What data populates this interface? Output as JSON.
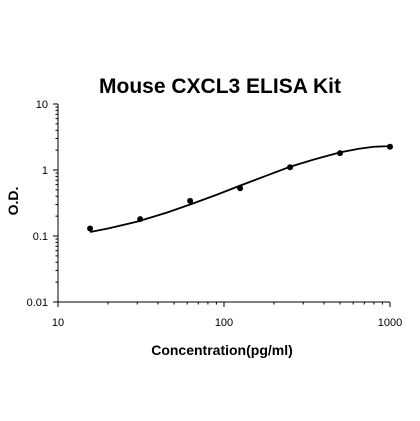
{
  "chart_data": {
    "type": "scatter",
    "title": "Mouse CXCL3 ELISA Kit",
    "xlabel": "Concentration(pg/ml)",
    "ylabel": "O.D.",
    "x_scale": "log",
    "y_scale": "log",
    "xlim": [
      10,
      1000
    ],
    "ylim": [
      0.01,
      10
    ],
    "x_ticks": [
      "10",
      "100",
      "1000"
    ],
    "y_ticks": [
      "10",
      "1",
      "0.1",
      "0.01"
    ],
    "grid": false,
    "series": [
      {
        "points": [
          {
            "x": 15.6,
            "y": 0.13
          },
          {
            "x": 31.25,
            "y": 0.18
          },
          {
            "x": 62.5,
            "y": 0.34
          },
          {
            "x": 125,
            "y": 0.53
          },
          {
            "x": 250,
            "y": 1.1
          },
          {
            "x": 500,
            "y": 1.8
          },
          {
            "x": 1000,
            "y": 2.25
          }
        ]
      }
    ],
    "fit_curve": {
      "x": [
        15.6,
        20,
        30,
        45,
        62.5,
        90,
        125,
        180,
        250,
        350,
        500,
        650,
        800,
        1000
      ],
      "y": [
        0.115,
        0.13,
        0.165,
        0.225,
        0.3,
        0.42,
        0.58,
        0.82,
        1.12,
        1.45,
        1.85,
        2.1,
        2.25,
        2.3
      ]
    }
  }
}
